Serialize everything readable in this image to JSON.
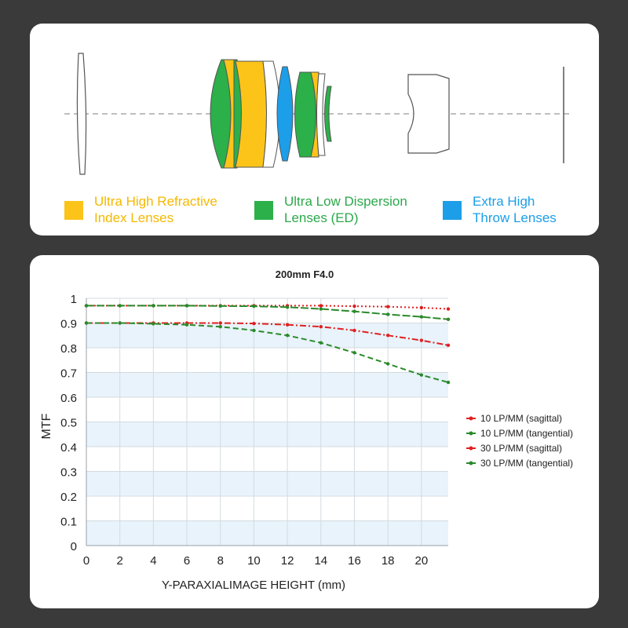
{
  "lens_diagram": {
    "legend": [
      {
        "line1": "Ultra High Refractive",
        "line2": "Index Lenses",
        "color": "#fcc419"
      },
      {
        "line1": "Ultra Low Dispersion",
        "line2": "Lenses (ED)",
        "color": "#2bb04a"
      },
      {
        "line1": "Extra High",
        "line2": "Throw Lenses",
        "color": "#1c9ee8"
      }
    ]
  },
  "chart_data": {
    "type": "line",
    "title": "200mm F4.0",
    "xlabel": "Y-PARAXIALIMAGE HEIGHT (mm)",
    "ylabel": "MTF",
    "xlim": [
      0,
      21.6
    ],
    "ylim": [
      0,
      1
    ],
    "x_ticks": [
      "0",
      "2",
      "4",
      "6",
      "8",
      "10",
      "12",
      "14",
      "16",
      "18",
      "20"
    ],
    "y_ticks": [
      "0",
      "0.1",
      "0.2",
      "0.3",
      "0.4",
      "0.5",
      "0.6",
      "0.7",
      "0.8",
      "0.9",
      "1"
    ],
    "series": [
      {
        "name": "10 LP/MM (sagittal)",
        "color": "#e02020",
        "dash": "2,3",
        "x": [
          0,
          2,
          4,
          6,
          8,
          10,
          12,
          14,
          16,
          18,
          20,
          21.6
        ],
        "y": [
          0.97,
          0.97,
          0.97,
          0.97,
          0.97,
          0.97,
          0.97,
          0.97,
          0.968,
          0.966,
          0.962,
          0.957
        ]
      },
      {
        "name": "10 LP/MM (tangential)",
        "color": "#2a8a2a",
        "dash": "10,3",
        "x": [
          0,
          2,
          4,
          6,
          8,
          10,
          12,
          14,
          16,
          18,
          20,
          21.6
        ],
        "y": [
          0.97,
          0.97,
          0.97,
          0.97,
          0.969,
          0.968,
          0.964,
          0.957,
          0.947,
          0.935,
          0.925,
          0.915
        ]
      },
      {
        "name": "30 LP/MM (sagittal)",
        "color": "#e02020",
        "dash": "8,3,2,3",
        "x": [
          0,
          2,
          4,
          6,
          8,
          10,
          12,
          14,
          16,
          18,
          20,
          21.6
        ],
        "y": [
          0.9,
          0.9,
          0.9,
          0.9,
          0.9,
          0.898,
          0.893,
          0.885,
          0.87,
          0.85,
          0.83,
          0.81
        ]
      },
      {
        "name": "30 LP/MM (tangential)",
        "color": "#2a8a2a",
        "dash": "7,4",
        "x": [
          0,
          2,
          4,
          6,
          8,
          10,
          12,
          14,
          16,
          18,
          20,
          21.6
        ],
        "y": [
          0.9,
          0.9,
          0.897,
          0.893,
          0.885,
          0.87,
          0.85,
          0.82,
          0.78,
          0.735,
          0.69,
          0.66
        ]
      }
    ],
    "legend_position": "right"
  }
}
